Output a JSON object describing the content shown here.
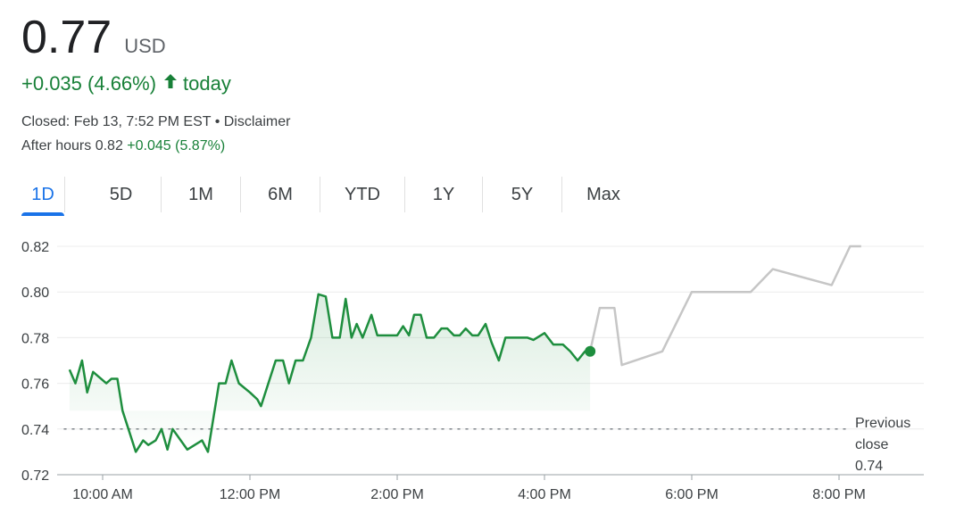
{
  "quote": {
    "price": "0.77",
    "currency": "USD",
    "change": "+0.035 (4.66%)",
    "arrow_icon": "arrow-up-icon",
    "change_suffix": "today",
    "closed_text": "Closed: Feb 13, 7:52 PM EST • Disclaimer",
    "after_hours_label": "After hours 0.82",
    "after_hours_change": "+0.045 (5.87%)",
    "up_color": "#188038"
  },
  "tabs": [
    {
      "label": "1D",
      "active": true
    },
    {
      "label": "5D",
      "active": false
    },
    {
      "label": "1M",
      "active": false
    },
    {
      "label": "6M",
      "active": false
    },
    {
      "label": "YTD",
      "active": false
    },
    {
      "label": "1Y",
      "active": false
    },
    {
      "label": "5Y",
      "active": false
    },
    {
      "label": "Max",
      "active": false
    }
  ],
  "chart_data": {
    "type": "line",
    "x_unit": "hours (time of day)",
    "ylim": [
      0.72,
      0.82
    ],
    "xlim": [
      9.5,
      20.0
    ],
    "y_ticks": [
      "0.72",
      "0.74",
      "0.76",
      "0.78",
      "0.80",
      "0.82"
    ],
    "x_ticks": [
      {
        "label": "10:00 AM",
        "value": 10
      },
      {
        "label": "12:00 PM",
        "value": 12
      },
      {
        "label": "2:00 PM",
        "value": 14
      },
      {
        "label": "4:00 PM",
        "value": 16
      },
      {
        "label": "6:00 PM",
        "value": 18
      },
      {
        "label": "8:00 PM",
        "value": 20
      }
    ],
    "grid": true,
    "previous_close": {
      "value": 0.74,
      "label_lines": [
        "Previous",
        "close",
        "0.74"
      ]
    },
    "series": [
      {
        "session": "regular",
        "color": "#1e8e3e",
        "points": [
          [
            9.55,
            0.766
          ],
          [
            9.63,
            0.76
          ],
          [
            9.72,
            0.77
          ],
          [
            9.79,
            0.756
          ],
          [
            9.87,
            0.765
          ],
          [
            10.05,
            0.76
          ],
          [
            10.12,
            0.762
          ],
          [
            10.2,
            0.762
          ],
          [
            10.27,
            0.748
          ],
          [
            10.45,
            0.73
          ],
          [
            10.55,
            0.735
          ],
          [
            10.62,
            0.733
          ],
          [
            10.72,
            0.735
          ],
          [
            10.8,
            0.74
          ],
          [
            10.88,
            0.731
          ],
          [
            10.95,
            0.74
          ],
          [
            11.15,
            0.731
          ],
          [
            11.35,
            0.735
          ],
          [
            11.43,
            0.73
          ],
          [
            11.58,
            0.76
          ],
          [
            11.67,
            0.76
          ],
          [
            11.75,
            0.77
          ],
          [
            11.85,
            0.76
          ],
          [
            12.0,
            0.756
          ],
          [
            12.1,
            0.753
          ],
          [
            12.15,
            0.75
          ],
          [
            12.35,
            0.77
          ],
          [
            12.45,
            0.77
          ],
          [
            12.53,
            0.76
          ],
          [
            12.62,
            0.77
          ],
          [
            12.72,
            0.77
          ],
          [
            12.83,
            0.78
          ],
          [
            12.93,
            0.799
          ],
          [
            13.03,
            0.798
          ],
          [
            13.12,
            0.78
          ],
          [
            13.22,
            0.78
          ],
          [
            13.3,
            0.797
          ],
          [
            13.38,
            0.78
          ],
          [
            13.45,
            0.786
          ],
          [
            13.53,
            0.78
          ],
          [
            13.65,
            0.79
          ],
          [
            13.73,
            0.781
          ],
          [
            13.93,
            0.781
          ],
          [
            14.0,
            0.781
          ],
          [
            14.08,
            0.785
          ],
          [
            14.16,
            0.781
          ],
          [
            14.23,
            0.79
          ],
          [
            14.32,
            0.79
          ],
          [
            14.4,
            0.78
          ],
          [
            14.5,
            0.78
          ],
          [
            14.6,
            0.784
          ],
          [
            14.68,
            0.784
          ],
          [
            14.77,
            0.781
          ],
          [
            14.85,
            0.781
          ],
          [
            14.93,
            0.784
          ],
          [
            15.02,
            0.781
          ],
          [
            15.1,
            0.781
          ],
          [
            15.2,
            0.786
          ],
          [
            15.28,
            0.778
          ],
          [
            15.38,
            0.77
          ],
          [
            15.47,
            0.78
          ],
          [
            15.65,
            0.78
          ],
          [
            15.77,
            0.78
          ],
          [
            15.85,
            0.779
          ],
          [
            16.0,
            0.782
          ],
          [
            16.12,
            0.777
          ],
          [
            16.25,
            0.777
          ],
          [
            16.35,
            0.774
          ],
          [
            16.45,
            0.77
          ],
          [
            16.55,
            0.774
          ],
          [
            16.62,
            0.774
          ]
        ],
        "last_point": [
          16.62,
          0.774
        ]
      },
      {
        "session": "after_hours",
        "color": "#c6c6c6",
        "points": [
          [
            16.62,
            0.774
          ],
          [
            16.75,
            0.793
          ],
          [
            16.95,
            0.793
          ],
          [
            17.05,
            0.768
          ],
          [
            17.6,
            0.774
          ],
          [
            18.0,
            0.8
          ],
          [
            18.5,
            0.8
          ],
          [
            18.8,
            0.8
          ],
          [
            19.1,
            0.81
          ],
          [
            19.9,
            0.803
          ],
          [
            20.15,
            0.82
          ],
          [
            20.3,
            0.82
          ]
        ]
      }
    ]
  }
}
